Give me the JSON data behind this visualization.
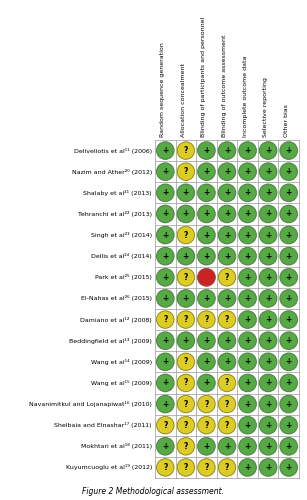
{
  "columns": [
    "Random sequence generation",
    "Allocation concealment",
    "Blinding of participants and personnel",
    "Blinding of outcome assessment",
    "Incomplete outcome data",
    "Selective reporting",
    "Other bias"
  ],
  "studies": [
    "Deliveliotis et al¹¹ (2006)",
    "Nazim and Ather²⁰ (2012)",
    "Shalaby et al²¹ (2013)",
    "Tehranchi et al²² (2013)",
    "Singh et al²³ (2014)",
    "Dellis et al²⁴ (2014)",
    "Park et al²⁵ (2015)",
    "El-Nahas et al²⁶ (2015)",
    "Damiano et al¹² (2008)",
    "Beddingfield et al¹³ (2009)",
    "Wang et al¹⁴ (2009)",
    "Wang et al¹⁵ (2009)",
    "Navanimitkul and Lojanapiwat¹⁶ (2010)",
    "Shelbaia and Elnashar¹⁷ (2011)",
    "Mokhtari et al¹⁸ (2011)",
    "Kuyumcuoglu et al¹⁹ (2012)"
  ],
  "ratings": [
    [
      "G",
      "Y",
      "G",
      "G",
      "G",
      "G",
      "G"
    ],
    [
      "G",
      "Y",
      "G",
      "G",
      "G",
      "G",
      "G"
    ],
    [
      "G",
      "G",
      "G",
      "G",
      "G",
      "G",
      "G"
    ],
    [
      "G",
      "G",
      "G",
      "G",
      "G",
      "G",
      "G"
    ],
    [
      "G",
      "Y",
      "G",
      "G",
      "G",
      "G",
      "G"
    ],
    [
      "G",
      "G",
      "G",
      "G",
      "G",
      "G",
      "G"
    ],
    [
      "G",
      "Y",
      "R",
      "Y",
      "G",
      "G",
      "G"
    ],
    [
      "G",
      "G",
      "G",
      "G",
      "G",
      "G",
      "G"
    ],
    [
      "Y",
      "Y",
      "Y",
      "Y",
      "G",
      "G",
      "G"
    ],
    [
      "G",
      "G",
      "G",
      "G",
      "G",
      "G",
      "G"
    ],
    [
      "G",
      "Y",
      "G",
      "G",
      "G",
      "G",
      "G"
    ],
    [
      "G",
      "Y",
      "G",
      "Y",
      "G",
      "G",
      "G"
    ],
    [
      "G",
      "Y",
      "Y",
      "Y",
      "G",
      "G",
      "G"
    ],
    [
      "Y",
      "Y",
      "Y",
      "Y",
      "G",
      "G",
      "G"
    ],
    [
      "G",
      "Y",
      "G",
      "G",
      "G",
      "G",
      "G"
    ],
    [
      "Y",
      "Y",
      "Y",
      "Y",
      "G",
      "G",
      "G"
    ]
  ],
  "colors": {
    "G": "#55AA44",
    "Y": "#DDCC22",
    "R": "#CC2222"
  },
  "symbols": {
    "G": "+",
    "Y": "?",
    "R": ""
  },
  "bg_color": "#FFFFFF",
  "grid_color": "#999999",
  "title": "Figure 2 Methodological assessment."
}
